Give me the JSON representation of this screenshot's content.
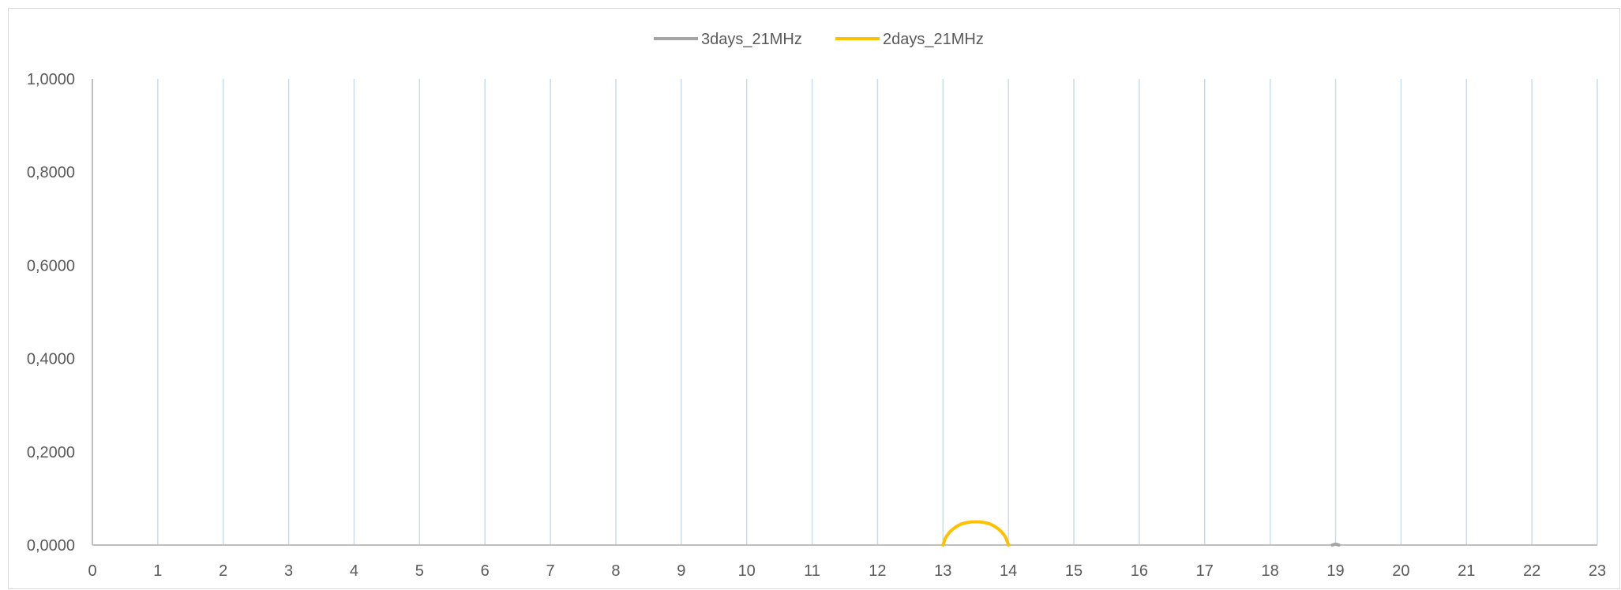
{
  "chart_data": {
    "type": "line",
    "legend": {
      "position": "top"
    },
    "x": [
      0,
      1,
      2,
      3,
      4,
      5,
      6,
      7,
      8,
      9,
      10,
      11,
      12,
      13,
      14,
      15,
      16,
      17,
      18,
      19,
      20,
      21,
      22,
      23
    ],
    "x_tick_labels": [
      "0",
      "1",
      "2",
      "3",
      "4",
      "5",
      "6",
      "7",
      "8",
      "9",
      "10",
      "11",
      "12",
      "13",
      "14",
      "15",
      "16",
      "17",
      "18",
      "19",
      "20",
      "21",
      "22",
      "23"
    ],
    "y_tick_labels": [
      "0,0000",
      "0,2000",
      "0,4000",
      "0,6000",
      "0,8000",
      "1,0000"
    ],
    "y_ticks": [
      0,
      0.2,
      0.4,
      0.6,
      0.8,
      1.0
    ],
    "xlim": [
      0,
      23
    ],
    "ylim": [
      0,
      1.0
    ],
    "grid": {
      "vertical": true,
      "horizontal": false
    },
    "series": [
      {
        "name": "3days_21MHz",
        "color": "#a5a5a5",
        "points": [
          [
            18.95,
            0.0
          ],
          [
            19.0,
            0.002
          ],
          [
            19.05,
            0.0
          ]
        ]
      },
      {
        "name": "2days_21MHz",
        "color": "#ffc000",
        "points": [
          [
            13.0,
            0.0
          ],
          [
            13.05,
            0.018
          ],
          [
            13.15,
            0.034
          ],
          [
            13.3,
            0.046
          ],
          [
            13.5,
            0.05
          ],
          [
            13.7,
            0.046
          ],
          [
            13.85,
            0.034
          ],
          [
            13.95,
            0.018
          ],
          [
            14.0,
            0.0
          ]
        ]
      }
    ],
    "colors": {
      "gridline": "#c9dcef",
      "axis": "#bfbfbf",
      "tick_text": "#595959",
      "legend_text": "#595959"
    }
  }
}
